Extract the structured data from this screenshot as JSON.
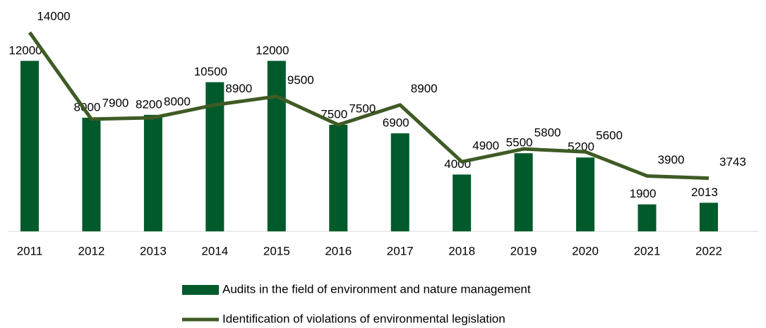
{
  "chart_data": {
    "type": "bar",
    "categories": [
      "2011",
      "2012",
      "2013",
      "2014",
      "2015",
      "2016",
      "2017",
      "2018",
      "2019",
      "2020",
      "2021",
      "2022"
    ],
    "series": [
      {
        "name": "Audits in the field of environment and nature management",
        "type": "bar",
        "color": "#005a2b",
        "values": [
          12000,
          8000,
          8200,
          10500,
          12000,
          7500,
          6900,
          4000,
          5500,
          5200,
          1900,
          2013
        ]
      },
      {
        "name": "Identification of violations of environmental legislation",
        "type": "line",
        "color": "#3f5b25",
        "values": [
          14000,
          7900,
          8000,
          8900,
          9500,
          7500,
          8900,
          4900,
          5800,
          5600,
          3900,
          3743
        ]
      }
    ],
    "ylim": [
      0,
      14000
    ],
    "legend": "bottom"
  }
}
